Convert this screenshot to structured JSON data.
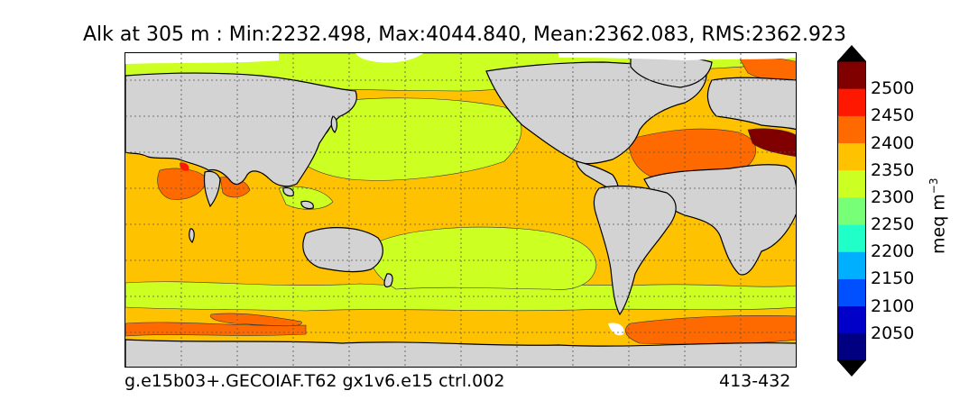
{
  "title": "Alk at 305 m : Min:2232.498, Max:4044.840, Mean:2362.083, RMS:2362.923",
  "footer": {
    "left": "g.e15b03+.GECOIAF.T62 gx1v6.e15 ctrl.002",
    "right": "413-432"
  },
  "colorbar": {
    "units": "meq m",
    "units_exp": "−3",
    "levels": [
      {
        "label": "2050",
        "color": "#0000c8"
      },
      {
        "label": "2100",
        "color": "#0050ff"
      },
      {
        "label": "2150",
        "color": "#00b0ff"
      },
      {
        "label": "2200",
        "color": "#20ffc8"
      },
      {
        "label": "2250",
        "color": "#78ff78"
      },
      {
        "label": "2300",
        "color": "#ccff22"
      },
      {
        "label": "2350",
        "color": "#ffc200"
      },
      {
        "label": "2400",
        "color": "#ff6a00"
      },
      {
        "label": "2450",
        "color": "#ff1800"
      },
      {
        "label": "2500",
        "color": "#800000"
      }
    ],
    "under_color": "#000080",
    "over_color": "#800000"
  },
  "colors": {
    "land": "#d3d3d3",
    "ice": "#ffffff",
    "grid": "#555555"
  }
}
